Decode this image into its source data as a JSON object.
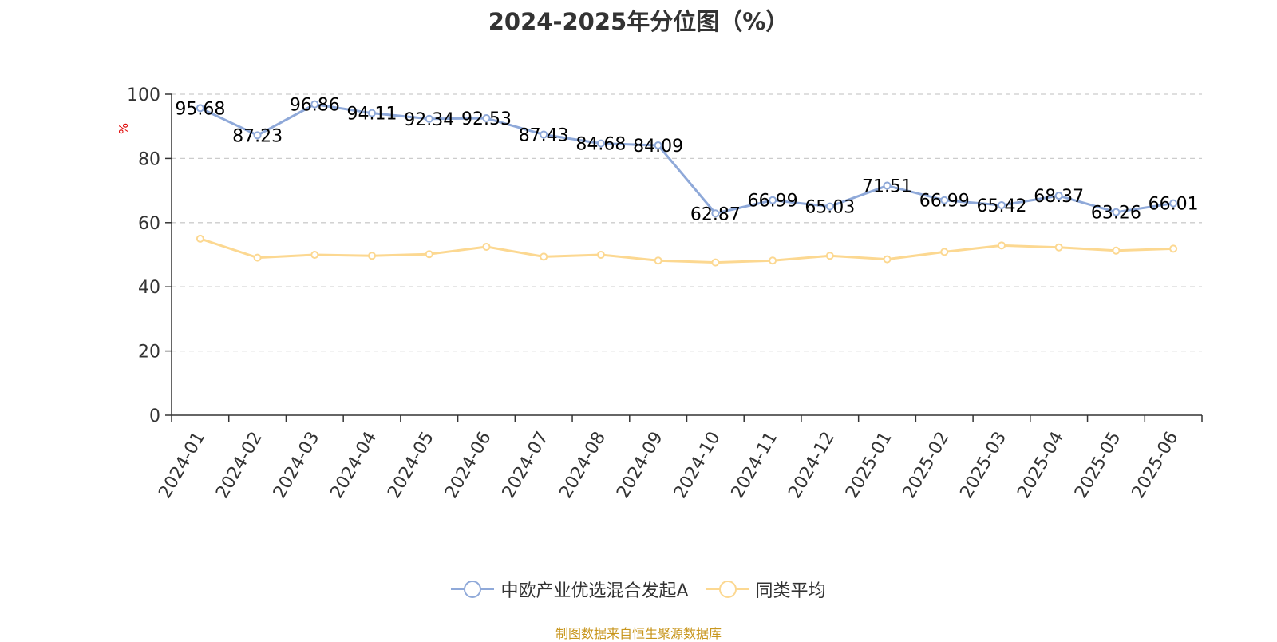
{
  "title": "2024-2025年分位图（%）",
  "y_unit": "%",
  "source": "制图数据来自恒生聚源数据库",
  "colors": {
    "series_a": "#8fa9d9",
    "series_b": "#fcd891",
    "grid": "#cccccc",
    "axis": "#333333",
    "unit": "#e00000",
    "source": "#c8961e"
  },
  "chart_data": {
    "type": "line",
    "title": "2024-2025年分位图（%）",
    "ylabel": "%",
    "ylim": [
      0,
      100
    ],
    "yticks": [
      0,
      20,
      40,
      60,
      80,
      100
    ],
    "grid": true,
    "legend_position": "bottom",
    "x": [
      "2024-01",
      "2024-02",
      "2024-03",
      "2024-04",
      "2024-05",
      "2024-06",
      "2024-07",
      "2024-08",
      "2024-09",
      "2024-10",
      "2024-11",
      "2024-12",
      "2025-01",
      "2025-02",
      "2025-03",
      "2025-04",
      "2025-05",
      "2025-06"
    ],
    "series": [
      {
        "name": "中欧产业优选混合发起A",
        "values": [
          95.68,
          87.23,
          96.86,
          94.11,
          92.34,
          92.53,
          87.43,
          84.68,
          84.09,
          62.87,
          66.99,
          65.03,
          71.51,
          66.99,
          65.42,
          68.37,
          63.26,
          66.01
        ],
        "labels": [
          "95.68",
          "87.23",
          "96.86",
          "94.11",
          "92.34",
          "92.53",
          "87.43",
          "84.68",
          "84.09",
          "62.87",
          "66.99",
          "65.03",
          "71.51",
          "66.99",
          "65.42",
          "68.37",
          "63.26",
          "66.01"
        ]
      },
      {
        "name": "同类平均",
        "values": [
          55.0,
          49.1,
          50.0,
          49.7,
          50.2,
          52.5,
          49.4,
          50.0,
          48.2,
          47.6,
          48.2,
          49.7,
          48.6,
          50.9,
          52.9,
          52.3,
          51.3,
          51.9
        ]
      }
    ]
  }
}
